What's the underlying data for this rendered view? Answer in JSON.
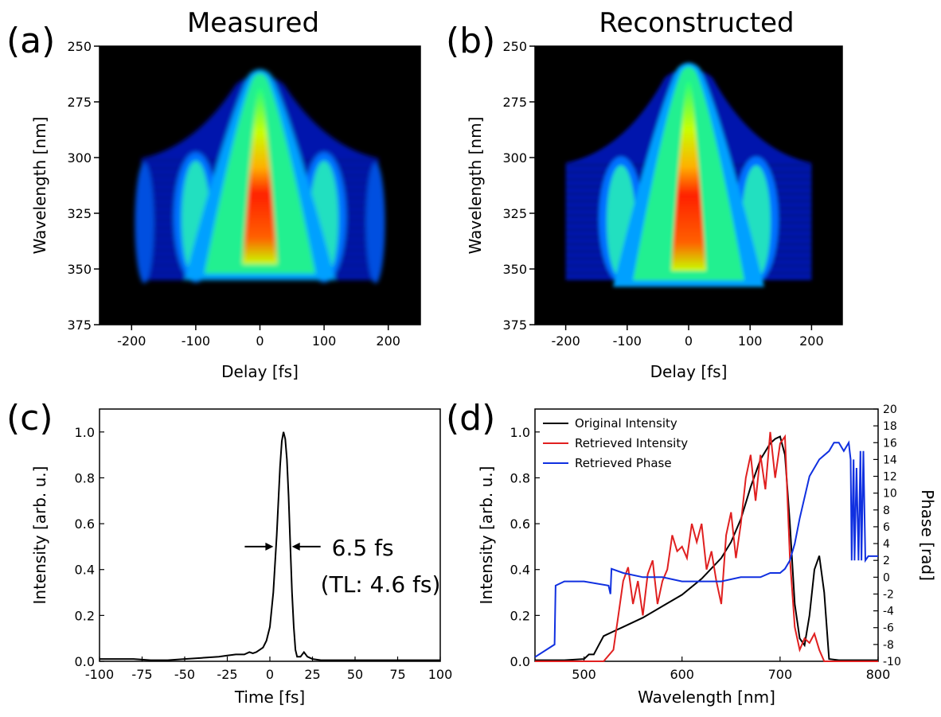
{
  "chart_data": [
    {
      "panel": "(a)",
      "type": "heatmap",
      "title": "Measured",
      "xlabel": "Delay [fs]",
      "ylabel": "Wavelength [nm]",
      "xlim": [
        -250,
        250
      ],
      "ylim": [
        250,
        375
      ],
      "y_reversed": true,
      "xticks": [
        -200,
        -100,
        0,
        100,
        200
      ],
      "yticks": [
        250,
        275,
        300,
        325,
        350,
        375
      ],
      "colormap": [
        "#000000",
        "#0000c8",
        "#0060ff",
        "#00e0ff",
        "#20ff80",
        "#c8ff00",
        "#ffb000",
        "#ff2000"
      ],
      "features": {
        "center_peak": {
          "delay": 0,
          "wavelength_top": 260,
          "wavelength_bottom": 355
        },
        "side_lobes": [
          {
            "delay": -100
          },
          {
            "delay": 100
          }
        ],
        "outer_fringes": [
          {
            "delay": -180
          },
          {
            "delay": 180
          }
        ],
        "envelope_wavelength_range": [
          295,
          355
        ],
        "envelope_delay_range": [
          -185,
          185
        ]
      }
    },
    {
      "panel": "(b)",
      "type": "heatmap",
      "title": "Reconstructed",
      "xlabel": "Delay [fs]",
      "ylabel": "Wavelength [nm]",
      "xlim": [
        -250,
        250
      ],
      "ylim": [
        250,
        375
      ],
      "y_reversed": true,
      "xticks": [
        -200,
        -100,
        0,
        100,
        200
      ],
      "yticks": [
        250,
        275,
        300,
        325,
        350,
        375
      ],
      "colormap": [
        "#000000",
        "#0000c8",
        "#0060ff",
        "#00e0ff",
        "#20ff80",
        "#c8ff00",
        "#ffb000",
        "#ff2000"
      ],
      "features": {
        "center_peak": {
          "delay": 0,
          "wavelength_top": 257,
          "wavelength_bottom": 358
        },
        "side_lobes": [
          {
            "delay": -110
          },
          {
            "delay": 110
          }
        ],
        "envelope_wavelength_range": [
          297,
          355
        ],
        "envelope_delay_range": [
          -200,
          200
        ]
      }
    },
    {
      "panel": "(c)",
      "type": "line",
      "xlabel": "Time [fs]",
      "ylabel": "Intensity [arb. u.]",
      "xlim": [
        -100,
        100
      ],
      "ylim": [
        0,
        1.1
      ],
      "xticks": [
        -100,
        -75,
        -50,
        -25,
        0,
        25,
        50,
        75,
        100
      ],
      "yticks": [
        0.0,
        0.2,
        0.4,
        0.6,
        0.8,
        1.0
      ],
      "ytick_labels": [
        "0.0",
        "0.2",
        "0.4",
        "0.6",
        "0.8",
        "1.0"
      ],
      "series": [
        {
          "color": "#000000",
          "x": [
            -100,
            -90,
            -80,
            -70,
            -60,
            -50,
            -40,
            -30,
            -25,
            -20,
            -15,
            -12,
            -10,
            -8,
            -6,
            -4,
            -2,
            0,
            2,
            4,
            5,
            6,
            7,
            8,
            9,
            10,
            11,
            12,
            13,
            14,
            15,
            16,
            18,
            20,
            22,
            25,
            30,
            40,
            60,
            80,
            100
          ],
          "y": [
            0.01,
            0.01,
            0.01,
            0.005,
            0.005,
            0.01,
            0.015,
            0.02,
            0.025,
            0.03,
            0.03,
            0.04,
            0.035,
            0.04,
            0.05,
            0.06,
            0.09,
            0.15,
            0.3,
            0.55,
            0.7,
            0.85,
            0.96,
            1.0,
            0.97,
            0.88,
            0.72,
            0.5,
            0.3,
            0.15,
            0.05,
            0.02,
            0.02,
            0.04,
            0.02,
            0.01,
            0.005,
            0.005,
            0.005,
            0.005,
            0.005
          ]
        }
      ],
      "annotations": [
        "6.5 fs",
        "(TL: 4.6 fs)"
      ]
    },
    {
      "panel": "(d)",
      "type": "line",
      "xlabel": "Wavelength [nm]",
      "ylabel": "Intensity [arb. u.]",
      "ylabel_right": "Phase [rad]",
      "xlim": [
        450,
        800
      ],
      "ylim": [
        0,
        1.1
      ],
      "ylim_right": [
        -10,
        20
      ],
      "xticks": [
        500,
        600,
        700,
        800
      ],
      "yticks": [
        0.0,
        0.2,
        0.4,
        0.6,
        0.8,
        1.0
      ],
      "ytick_labels": [
        "0.0",
        "0.2",
        "0.4",
        "0.6",
        "0.8",
        "1.0"
      ],
      "yticks_right": [
        -10,
        -8,
        -6,
        -4,
        -2,
        0,
        2,
        4,
        6,
        8,
        10,
        12,
        14,
        16,
        18,
        20
      ],
      "legend_position": "top-left",
      "series": [
        {
          "name": "Original Intensity",
          "color": "#000000",
          "axis": "left",
          "x": [
            450,
            480,
            500,
            505,
            510,
            515,
            520,
            530,
            540,
            560,
            580,
            600,
            620,
            640,
            650,
            660,
            670,
            680,
            690,
            695,
            700,
            705,
            710,
            715,
            720,
            725,
            730,
            735,
            740,
            745,
            750,
            760,
            800
          ],
          "y": [
            0.005,
            0.005,
            0.01,
            0.03,
            0.03,
            0.07,
            0.11,
            0.13,
            0.15,
            0.19,
            0.24,
            0.29,
            0.36,
            0.45,
            0.52,
            0.62,
            0.76,
            0.88,
            0.95,
            0.97,
            0.98,
            0.9,
            0.6,
            0.25,
            0.1,
            0.07,
            0.2,
            0.4,
            0.46,
            0.3,
            0.01,
            0.005,
            0.005
          ]
        },
        {
          "name": "Retrieved Intensity",
          "color": "#e02020",
          "axis": "left",
          "x": [
            450,
            520,
            530,
            535,
            540,
            545,
            550,
            555,
            560,
            565,
            570,
            575,
            580,
            585,
            590,
            595,
            600,
            605,
            610,
            615,
            620,
            625,
            630,
            635,
            640,
            645,
            650,
            655,
            660,
            665,
            670,
            675,
            680,
            685,
            690,
            695,
            700,
            705,
            710,
            715,
            720,
            725,
            730,
            735,
            740,
            745,
            800
          ],
          "y": [
            0.0,
            0.0,
            0.05,
            0.2,
            0.35,
            0.41,
            0.25,
            0.35,
            0.2,
            0.38,
            0.44,
            0.25,
            0.35,
            0.4,
            0.55,
            0.48,
            0.5,
            0.45,
            0.6,
            0.52,
            0.6,
            0.4,
            0.48,
            0.35,
            0.25,
            0.55,
            0.65,
            0.45,
            0.6,
            0.8,
            0.9,
            0.7,
            0.9,
            0.75,
            1.0,
            0.8,
            0.95,
            0.98,
            0.45,
            0.15,
            0.05,
            0.1,
            0.08,
            0.12,
            0.05,
            0.0,
            0.0
          ]
        },
        {
          "name": "Retrieved Phase",
          "color": "#1030e0",
          "axis": "right",
          "x": [
            450,
            470,
            471,
            480,
            500,
            525,
            527,
            528,
            540,
            560,
            580,
            600,
            620,
            640,
            660,
            680,
            690,
            700,
            705,
            710,
            715,
            720,
            730,
            740,
            750,
            755,
            760,
            765,
            770,
            772,
            773,
            775,
            776,
            778,
            780,
            782,
            783,
            785,
            787,
            790,
            800
          ],
          "y": [
            -9.5,
            -8,
            -1,
            -0.5,
            -0.5,
            -1,
            -2,
            1,
            0.5,
            0,
            0,
            -0.5,
            -0.5,
            -0.5,
            0,
            0,
            0.5,
            0.5,
            1,
            2,
            4,
            7,
            12,
            14,
            15,
            16,
            16,
            15,
            16,
            14,
            2,
            14,
            2,
            13,
            2,
            15,
            2,
            15,
            2,
            2.5,
            2.5
          ]
        }
      ],
      "legend": [
        "Original Intensity",
        "Retrieved Intensity",
        "Retrieved Phase"
      ]
    }
  ]
}
